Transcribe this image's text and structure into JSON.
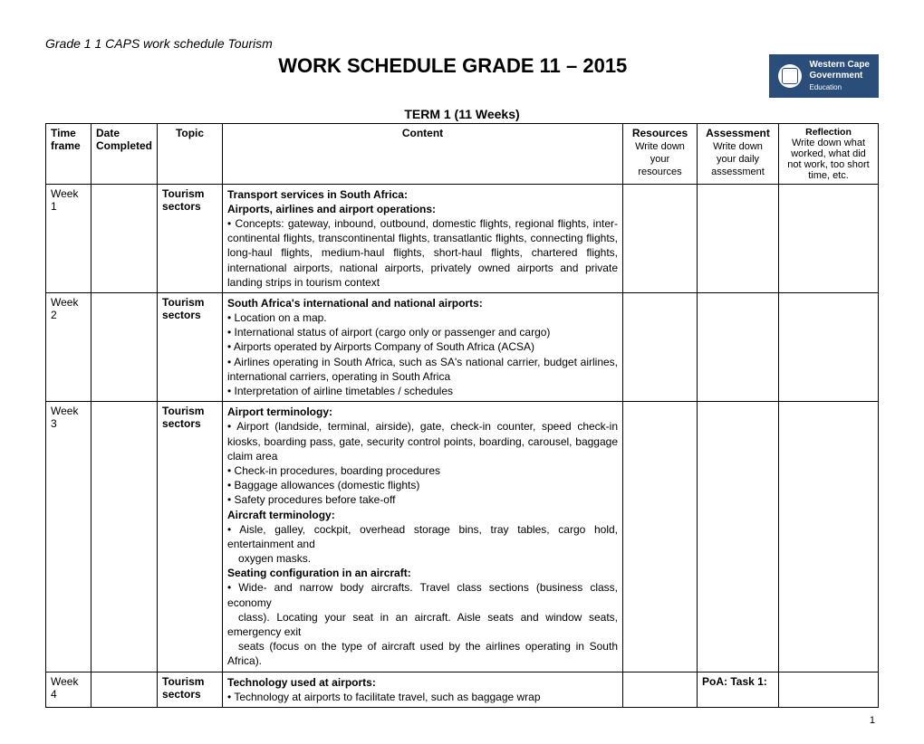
{
  "header_text": "Grade 1 1 CAPS work schedule Tourism",
  "title": "WORK SCHEDULE GRADE 11 – 2015",
  "logo": {
    "line1": "Western Cape",
    "line2": "Government",
    "line3": "Education"
  },
  "term_header": "TERM 1    (11 Weeks)",
  "columns": {
    "time": {
      "label": "Time frame"
    },
    "date": {
      "label": "Date Completed"
    },
    "topic": {
      "label": "Topic"
    },
    "content": {
      "label": "Content"
    },
    "resources": {
      "label": "Resources",
      "sub": "Write down your resources"
    },
    "assessment": {
      "label": "Assessment",
      "sub": "Write down your daily assessment"
    },
    "reflection": {
      "label": "Reflection",
      "sub": "Write down what worked, what did not work, too short time, etc."
    }
  },
  "rows": [
    {
      "time": "Week 1",
      "date": "",
      "topic": "Tourism sectors",
      "content_heading1": "Transport services in South Africa:",
      "content_heading2": "Airports, airlines and airport operations:",
      "content_body": "• Concepts: gateway, inbound, outbound, domestic flights, regional flights, inter-continental flights, transcontinental flights, transatlantic flights, connecting flights, long-haul flights, medium-haul flights, short-haul flights, chartered flights, international airports, national airports, privately owned airports and private landing strips in tourism context",
      "resources": "",
      "assessment": "",
      "reflection": ""
    },
    {
      "time": "Week 2",
      "date": "",
      "topic": "Tourism sectors",
      "content_heading1": "South Africa's international and national airports:",
      "content_lines": [
        "• Location on a map.",
        "• International status of airport (cargo only or passenger and cargo)",
        "• Airports operated by Airports Company of South Africa (ACSA)",
        "• Airlines operating in South Africa, such as SA's national carrier, budget airlines, international carriers, operating in South Africa",
        "• Interpretation of airline timetables / schedules"
      ],
      "resources": "",
      "assessment": "",
      "reflection": ""
    },
    {
      "time": "Week 3",
      "date": "",
      "topic": "Tourism sectors",
      "content_heading1": "Airport terminology:",
      "content_lines_a": [
        "• Airport (landside, terminal, airside), gate, check-in counter, speed check-in kiosks, boarding pass, gate, security control points, boarding, carousel, baggage claim area",
        "• Check-in procedures, boarding procedures",
        "• Baggage allowances (domestic flights)",
        "• Safety procedures before take-off"
      ],
      "content_heading2": "Aircraft terminology:",
      "content_lines_b": [
        "• Aisle, galley, cockpit, overhead storage bins, tray tables, cargo hold, entertainment and"
      ],
      "content_indent_b": "oxygen masks.",
      "content_heading3": "Seating configuration in an aircraft:",
      "content_lines_c": [
        "• Wide- and narrow body aircrafts. Travel class sections (business class, economy"
      ],
      "content_indent_c1": "class). Locating your seat in an aircraft. Aisle seats and window seats, emergency exit",
      "content_indent_c2": "seats (focus on the type of aircraft used by the airlines operating in South Africa).",
      "resources": "",
      "assessment": "",
      "reflection": ""
    },
    {
      "time": "Week 4",
      "date": "",
      "topic": "Tourism sectors",
      "content_heading1": "Technology used at airports:",
      "content_body": "• Technology at airports to facilitate travel, such as baggage wrap",
      "resources": "",
      "assessment": "PoA: Task 1:",
      "reflection": ""
    }
  ],
  "page_number": "1"
}
